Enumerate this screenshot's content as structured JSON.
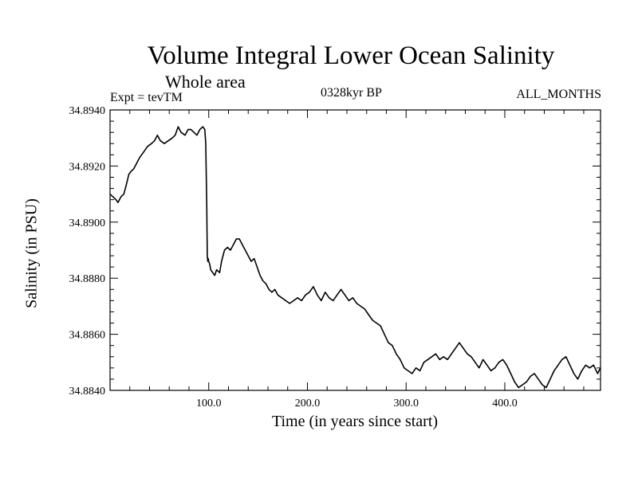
{
  "header": {
    "title": "Volume Integral Lower Ocean Salinity",
    "subtitle": "Whole area",
    "experiment": "Expt = tevTM",
    "period": "0328kyr BP",
    "months": "ALL_MONTHS"
  },
  "chart_data": {
    "type": "line",
    "title": "Volume Integral Lower Ocean Salinity",
    "xlabel": "Time (in years since start)",
    "ylabel": "Salinity (in PSU)",
    "xlim": [
      0,
      497
    ],
    "ylim": [
      34.884,
      34.894
    ],
    "x_ticks": [
      100,
      200,
      300,
      400
    ],
    "x_tick_labels": [
      "100.0",
      "200.0",
      "300.0",
      "400.0"
    ],
    "y_ticks": [
      34.884,
      34.886,
      34.888,
      34.89,
      34.892,
      34.894
    ],
    "y_tick_labels": [
      "34.8840",
      "34.8860",
      "34.8880",
      "34.8900",
      "34.8920",
      "34.8940"
    ],
    "grid": false,
    "series": [
      {
        "color": "#000000",
        "x": [
          0,
          3,
          6,
          8,
          11,
          14,
          17,
          19,
          21,
          24,
          27,
          30,
          34,
          38,
          42,
          45,
          48,
          51,
          55,
          59,
          63,
          66,
          69,
          72,
          76,
          79,
          82,
          85,
          88,
          91,
          94,
          96,
          97,
          98,
          98.5,
          99,
          99.5,
          100,
          101,
          102,
          104,
          106,
          108,
          111,
          113,
          116,
          119,
          122,
          125,
          128,
          131,
          134,
          137,
          140,
          143,
          146,
          149,
          152,
          155,
          158,
          161,
          164,
          167,
          170,
          174,
          178,
          182,
          186,
          190,
          194,
          198,
          202,
          206,
          210,
          214,
          218,
          222,
          226,
          230,
          234,
          238,
          242,
          246,
          250,
          254,
          258,
          262,
          266,
          270,
          274,
          278,
          282,
          286,
          290,
          294,
          298,
          302,
          306,
          310,
          314,
          318,
          322,
          326,
          330,
          334,
          338,
          342,
          346,
          350,
          354,
          358,
          362,
          366,
          370,
          374,
          378,
          382,
          386,
          390,
          394,
          398,
          402,
          406,
          410,
          414,
          418,
          422,
          426,
          430,
          434,
          438,
          442,
          446,
          450,
          454,
          458,
          462,
          466,
          470,
          474,
          478,
          482,
          486,
          490,
          494,
          497
        ],
        "y": [
          34.891,
          34.8909,
          34.8908,
          34.8907,
          34.8909,
          34.891,
          34.8914,
          34.8917,
          34.8918,
          34.8919,
          34.8921,
          34.8923,
          34.8925,
          34.8927,
          34.8928,
          34.8929,
          34.8931,
          34.8929,
          34.8928,
          34.8929,
          34.893,
          34.8931,
          34.8934,
          34.8932,
          34.8931,
          34.8933,
          34.8933,
          34.8932,
          34.8931,
          34.8933,
          34.8934,
          34.8933,
          34.8928,
          34.8905,
          34.8888,
          34.8886,
          34.8887,
          34.8886,
          34.8885,
          34.8883,
          34.8882,
          34.8881,
          34.8883,
          34.8882,
          34.8886,
          34.889,
          34.8891,
          34.889,
          34.8892,
          34.8894,
          34.8894,
          34.8892,
          34.889,
          34.8888,
          34.8886,
          34.8887,
          34.8884,
          34.8881,
          34.8879,
          34.8878,
          34.8876,
          34.8875,
          34.8876,
          34.8874,
          34.8873,
          34.8872,
          34.8871,
          34.8872,
          34.8873,
          34.8872,
          34.8874,
          34.8875,
          34.8877,
          34.8874,
          34.8872,
          34.8875,
          34.8873,
          34.8872,
          34.8874,
          34.8876,
          34.8874,
          34.8872,
          34.8873,
          34.8871,
          34.887,
          34.8869,
          34.8867,
          34.8865,
          34.8864,
          34.8863,
          34.886,
          34.8857,
          34.8856,
          34.8853,
          34.8851,
          34.8848,
          34.8847,
          34.8846,
          34.8848,
          34.8847,
          34.885,
          34.8851,
          34.8852,
          34.8853,
          34.8851,
          34.8852,
          34.8851,
          34.8853,
          34.8855,
          34.8857,
          34.8855,
          34.8853,
          34.8852,
          34.885,
          34.8848,
          34.8851,
          34.8849,
          34.8847,
          34.8848,
          34.885,
          34.8851,
          34.8849,
          34.8846,
          34.8843,
          34.8841,
          34.8842,
          34.8843,
          34.8845,
          34.8846,
          34.8844,
          34.8842,
          34.8841,
          34.8844,
          34.8847,
          34.8849,
          34.8851,
          34.8852,
          34.8849,
          34.8846,
          34.8844,
          34.8847,
          34.8849,
          34.8848,
          34.8849,
          34.8846,
          34.8848
        ]
      }
    ]
  }
}
